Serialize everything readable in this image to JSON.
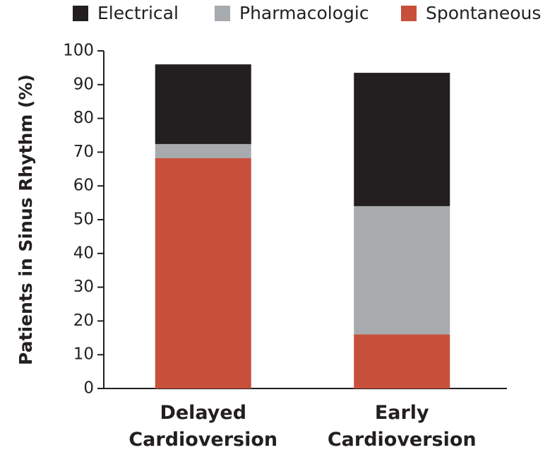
{
  "chart_data": {
    "type": "stacked_bar",
    "ylabel": "Patients in Sinus Rhythm (%)",
    "categories": [
      "Delayed Cardioversion",
      "Early Cardioversion"
    ],
    "series": [
      {
        "name": "Electrical",
        "color": "#231f20",
        "values": [
          23.6,
          39.5
        ]
      },
      {
        "name": "Pharmacologic",
        "color": "#a7abae",
        "values": [
          4.2,
          38
        ]
      },
      {
        "name": "Spontaneous",
        "color": "#c8503a",
        "values": [
          68.2,
          16
        ]
      }
    ],
    "ylim": [
      0,
      100
    ],
    "yticks": [
      0,
      10,
      20,
      30,
      40,
      50,
      60,
      70,
      80,
      90,
      100
    ],
    "grid": false
  }
}
